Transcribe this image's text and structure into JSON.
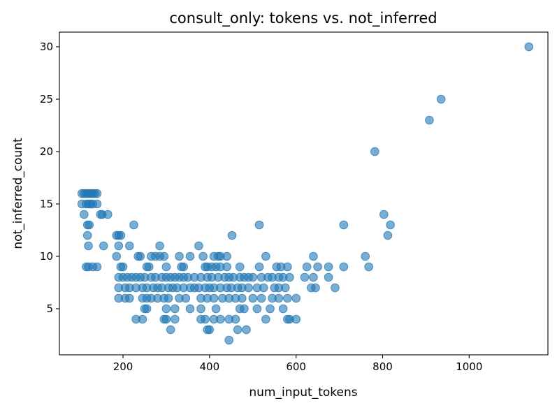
{
  "chart_data": {
    "type": "scatter",
    "title": "consult_only: tokens vs. not_inferred",
    "xlabel": "num_input_tokens",
    "ylabel": "not_inferred_count",
    "xlim": [
      53,
      1182
    ],
    "ylim": [
      0.6,
      31.4
    ],
    "xticks": [
      200,
      400,
      600,
      800,
      1000
    ],
    "yticks": [
      5,
      10,
      15,
      20,
      25,
      30
    ],
    "grid": false,
    "marker_color": "#1f77b4",
    "marker_alpha": 0.6,
    "points": [
      [
        1138,
        30
      ],
      [
        935,
        25
      ],
      [
        908,
        23
      ],
      [
        782,
        20
      ],
      [
        803,
        14
      ],
      [
        818,
        13
      ],
      [
        812,
        12
      ],
      [
        768,
        9
      ],
      [
        760,
        10
      ],
      [
        710,
        13
      ],
      [
        710,
        9
      ],
      [
        105,
        16
      ],
      [
        110,
        16
      ],
      [
        115,
        16
      ],
      [
        120,
        16
      ],
      [
        125,
        16
      ],
      [
        130,
        16
      ],
      [
        135,
        16
      ],
      [
        140,
        16
      ],
      [
        105,
        15
      ],
      [
        115,
        15
      ],
      [
        120,
        15
      ],
      [
        125,
        15
      ],
      [
        130,
        15
      ],
      [
        140,
        15
      ],
      [
        110,
        14
      ],
      [
        148,
        14
      ],
      [
        152,
        14
      ],
      [
        165,
        14
      ],
      [
        118,
        13
      ],
      [
        122,
        13
      ],
      [
        225,
        13
      ],
      [
        515,
        13
      ],
      [
        118,
        12
      ],
      [
        185,
        12
      ],
      [
        190,
        12
      ],
      [
        195,
        12
      ],
      [
        452,
        12
      ],
      [
        120,
        11
      ],
      [
        155,
        11
      ],
      [
        190,
        11
      ],
      [
        215,
        11
      ],
      [
        285,
        11
      ],
      [
        375,
        11
      ],
      [
        115,
        9
      ],
      [
        120,
        9
      ],
      [
        130,
        9
      ],
      [
        140,
        9
      ],
      [
        195,
        9
      ],
      [
        200,
        9
      ],
      [
        255,
        9
      ],
      [
        260,
        9
      ],
      [
        300,
        9
      ],
      [
        335,
        9
      ],
      [
        340,
        9
      ],
      [
        390,
        9
      ],
      [
        395,
        9
      ],
      [
        405,
        9
      ],
      [
        415,
        9
      ],
      [
        425,
        9
      ],
      [
        440,
        9
      ],
      [
        470,
        9
      ],
      [
        515,
        9
      ],
      [
        555,
        9
      ],
      [
        565,
        9
      ],
      [
        580,
        9
      ],
      [
        625,
        9
      ],
      [
        650,
        9
      ],
      [
        675,
        9
      ],
      [
        185,
        10
      ],
      [
        235,
        10
      ],
      [
        240,
        10
      ],
      [
        265,
        10
      ],
      [
        275,
        10
      ],
      [
        285,
        10
      ],
      [
        295,
        10
      ],
      [
        330,
        10
      ],
      [
        355,
        10
      ],
      [
        385,
        10
      ],
      [
        410,
        10
      ],
      [
        420,
        10
      ],
      [
        425,
        10
      ],
      [
        440,
        10
      ],
      [
        530,
        10
      ],
      [
        640,
        10
      ],
      [
        190,
        8
      ],
      [
        200,
        8
      ],
      [
        210,
        8
      ],
      [
        220,
        8
      ],
      [
        230,
        8
      ],
      [
        240,
        8
      ],
      [
        250,
        8
      ],
      [
        265,
        8
      ],
      [
        275,
        8
      ],
      [
        290,
        8
      ],
      [
        300,
        8
      ],
      [
        310,
        8
      ],
      [
        320,
        8
      ],
      [
        330,
        8
      ],
      [
        340,
        8
      ],
      [
        350,
        8
      ],
      [
        365,
        8
      ],
      [
        380,
        8
      ],
      [
        395,
        8
      ],
      [
        405,
        8
      ],
      [
        420,
        8
      ],
      [
        435,
        8
      ],
      [
        445,
        8
      ],
      [
        455,
        8
      ],
      [
        470,
        8
      ],
      [
        480,
        8
      ],
      [
        490,
        8
      ],
      [
        500,
        8
      ],
      [
        520,
        8
      ],
      [
        535,
        8
      ],
      [
        545,
        8
      ],
      [
        560,
        8
      ],
      [
        570,
        8
      ],
      [
        585,
        8
      ],
      [
        620,
        8
      ],
      [
        640,
        8
      ],
      [
        675,
        8
      ],
      [
        190,
        7
      ],
      [
        205,
        7
      ],
      [
        215,
        7
      ],
      [
        230,
        7
      ],
      [
        245,
        7
      ],
      [
        255,
        7
      ],
      [
        270,
        7
      ],
      [
        280,
        7
      ],
      [
        290,
        7
      ],
      [
        305,
        7
      ],
      [
        315,
        7
      ],
      [
        325,
        7
      ],
      [
        340,
        7
      ],
      [
        355,
        7
      ],
      [
        365,
        7
      ],
      [
        375,
        7
      ],
      [
        390,
        7
      ],
      [
        400,
        7
      ],
      [
        410,
        7
      ],
      [
        425,
        7
      ],
      [
        440,
        7
      ],
      [
        450,
        7
      ],
      [
        465,
        7
      ],
      [
        475,
        7
      ],
      [
        490,
        7
      ],
      [
        510,
        7
      ],
      [
        525,
        7
      ],
      [
        550,
        7
      ],
      [
        560,
        7
      ],
      [
        575,
        7
      ],
      [
        635,
        7
      ],
      [
        645,
        7
      ],
      [
        690,
        7
      ],
      [
        190,
        6
      ],
      [
        205,
        6
      ],
      [
        215,
        6
      ],
      [
        245,
        6
      ],
      [
        255,
        6
      ],
      [
        265,
        6
      ],
      [
        280,
        6
      ],
      [
        295,
        6
      ],
      [
        305,
        6
      ],
      [
        330,
        6
      ],
      [
        345,
        6
      ],
      [
        380,
        6
      ],
      [
        395,
        6
      ],
      [
        410,
        6
      ],
      [
        430,
        6
      ],
      [
        445,
        6
      ],
      [
        460,
        6
      ],
      [
        475,
        6
      ],
      [
        500,
        6
      ],
      [
        520,
        6
      ],
      [
        545,
        6
      ],
      [
        560,
        6
      ],
      [
        580,
        6
      ],
      [
        600,
        6
      ],
      [
        250,
        5
      ],
      [
        255,
        5
      ],
      [
        300,
        5
      ],
      [
        320,
        5
      ],
      [
        355,
        5
      ],
      [
        380,
        5
      ],
      [
        415,
        5
      ],
      [
        470,
        5
      ],
      [
        480,
        5
      ],
      [
        510,
        5
      ],
      [
        540,
        5
      ],
      [
        570,
        5
      ],
      [
        230,
        4
      ],
      [
        245,
        4
      ],
      [
        295,
        4
      ],
      [
        300,
        4
      ],
      [
        320,
        4
      ],
      [
        380,
        4
      ],
      [
        390,
        4
      ],
      [
        410,
        4
      ],
      [
        425,
        4
      ],
      [
        445,
        4
      ],
      [
        460,
        4
      ],
      [
        530,
        4
      ],
      [
        580,
        4
      ],
      [
        585,
        4
      ],
      [
        600,
        4
      ],
      [
        310,
        3
      ],
      [
        395,
        3
      ],
      [
        400,
        3
      ],
      [
        465,
        3
      ],
      [
        485,
        3
      ],
      [
        445,
        2
      ]
    ]
  }
}
